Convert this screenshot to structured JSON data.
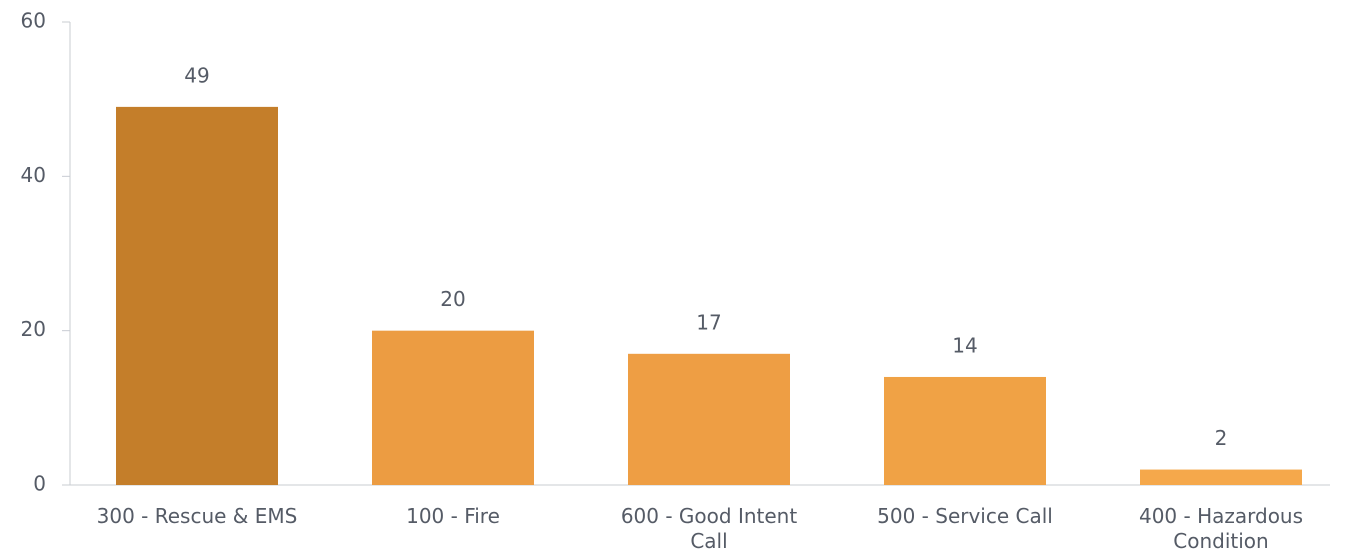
{
  "chart_data": {
    "type": "bar",
    "categories": [
      "300 - Rescue & EMS",
      "100 - Fire",
      "600 - Good Intent Call",
      "500 - Service Call",
      "400 - Hazardous Condition"
    ],
    "values": [
      49,
      20,
      17,
      14,
      2
    ],
    "colors": [
      "#c47e2a",
      "#ec9c42",
      "#ee9e44",
      "#f0a245",
      "#f5a84b"
    ],
    "ylim": [
      0,
      60
    ],
    "yticks": [
      0,
      20,
      40,
      60
    ],
    "grid": false
  }
}
